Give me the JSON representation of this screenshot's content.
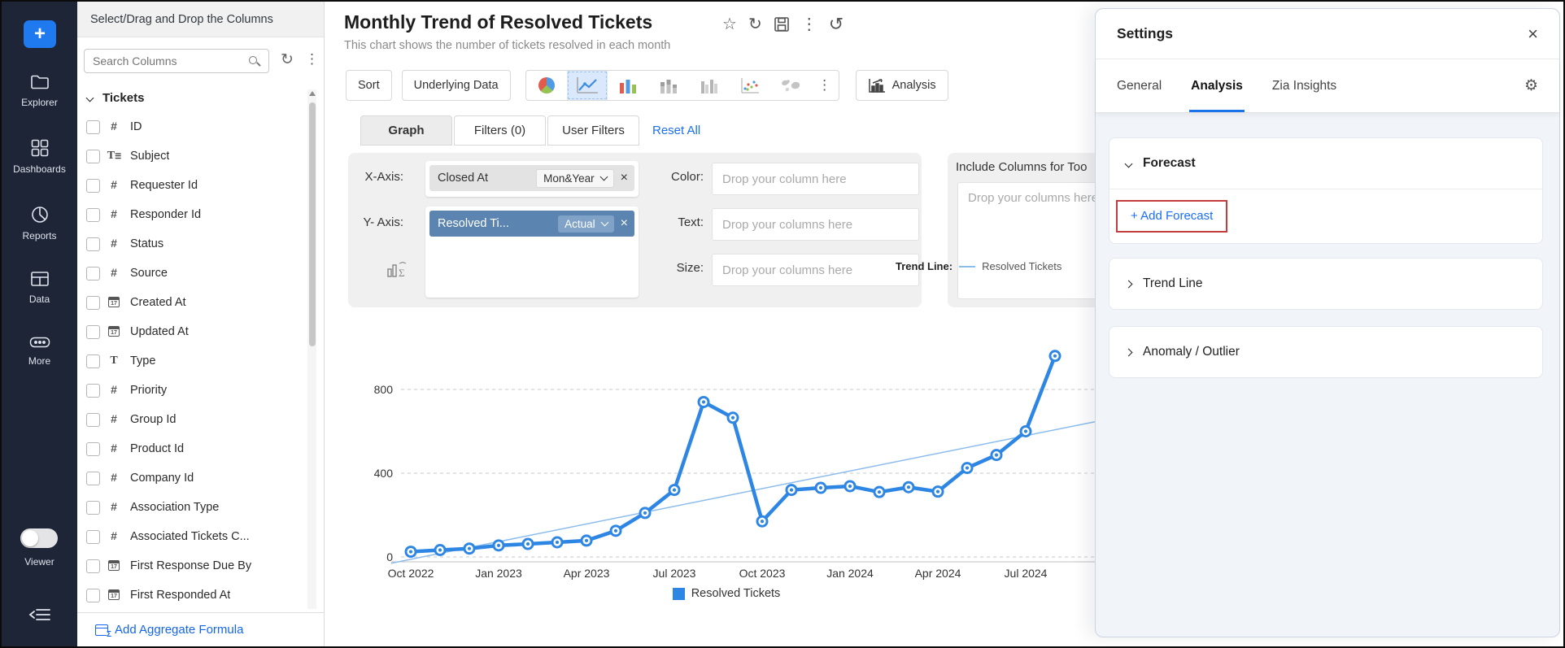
{
  "sidebar": {
    "plus_label": "+",
    "items": [
      {
        "label": "Explorer",
        "icon": "folder-icon"
      },
      {
        "label": "Dashboards",
        "icon": "grid-icon"
      },
      {
        "label": "Reports",
        "icon": "pie-outline-icon"
      },
      {
        "label": "Data",
        "icon": "table-icon"
      },
      {
        "label": "More",
        "icon": "ellipsis-pill-icon"
      }
    ],
    "viewer_label": "Viewer"
  },
  "columns_panel": {
    "header": "Select/Drag and Drop the Columns",
    "search_placeholder": "Search Columns",
    "group_label": "Tickets",
    "items": [
      {
        "label": "ID",
        "type": "number"
      },
      {
        "label": "Subject",
        "type": "multitext"
      },
      {
        "label": "Requester Id",
        "type": "number"
      },
      {
        "label": "Responder Id",
        "type": "number"
      },
      {
        "label": "Status",
        "type": "number"
      },
      {
        "label": "Source",
        "type": "number"
      },
      {
        "label": "Created At",
        "type": "date"
      },
      {
        "label": "Updated At",
        "type": "date"
      },
      {
        "label": "Type",
        "type": "text"
      },
      {
        "label": "Priority",
        "type": "number"
      },
      {
        "label": "Group Id",
        "type": "number"
      },
      {
        "label": "Product Id",
        "type": "number"
      },
      {
        "label": "Company Id",
        "type": "number"
      },
      {
        "label": "Association Type",
        "type": "number"
      },
      {
        "label": "Associated Tickets C...",
        "type": "number"
      },
      {
        "label": "First Response Due By",
        "type": "date"
      },
      {
        "label": "First Responded At",
        "type": "date"
      }
    ],
    "add_formula_label": "Add Aggregate Formula"
  },
  "report": {
    "title": "Monthly Trend of Resolved Tickets",
    "subtitle": "This chart shows the number of tickets resolved in each month",
    "toolbar": {
      "sort_label": "Sort",
      "underlying_label": "Underlying Data",
      "analysis_label": "Analysis",
      "chart_types": [
        {
          "name": "pie-chart-icon",
          "selected": false
        },
        {
          "name": "line-chart-icon",
          "selected": true
        },
        {
          "name": "bar-chart-icon",
          "selected": false
        },
        {
          "name": "stacked-bar-icon",
          "selected": false
        },
        {
          "name": "grouped-bar-icon",
          "selected": false
        },
        {
          "name": "scatter-chart-icon",
          "selected": false
        },
        {
          "name": "map-chart-icon",
          "selected": false
        }
      ]
    },
    "tabs": {
      "graph": "Graph",
      "filters": "Filters  (0)",
      "user_filters": "User Filters",
      "reset_all": "Reset All"
    }
  },
  "shelves": {
    "x_axis_label": "X-Axis:",
    "x_chip": "Closed At",
    "x_chip_fn": "Mon&Year",
    "y_axis_label": "Y- Axis:",
    "y_chip": "Resolved Ti...",
    "y_chip_fn": "Actual",
    "color_label": "Color:",
    "color_placeholder": "Drop your column here",
    "text_label": "Text:",
    "text_placeholder": "Drop your columns here",
    "size_label": "Size:",
    "size_placeholder": "Drop your columns here",
    "tooltip_label": "Include Columns for Too",
    "tooltip_placeholder": "Drop your columns here"
  },
  "settings": {
    "title": "Settings",
    "tabs": [
      "General",
      "Analysis",
      "Zia Insights"
    ],
    "active_tab": "Analysis",
    "sections": [
      {
        "label": "Forecast",
        "expanded": true,
        "action": "+ Add Forecast",
        "action_highlighted": true
      },
      {
        "label": "Trend Line",
        "expanded": false
      },
      {
        "label": "Anomaly / Outlier",
        "expanded": false
      }
    ]
  },
  "chart_data": {
    "type": "line",
    "x": [
      "Oct 2022",
      "Nov 2022",
      "Dec 2022",
      "Jan 2023",
      "Feb 2023",
      "Mar 2023",
      "Apr 2023",
      "May 2023",
      "Jun 2023",
      "Jul 2023",
      "Aug 2023",
      "Sep 2023",
      "Oct 2023",
      "Nov 2023",
      "Dec 2023",
      "Jan 2024",
      "Feb 2024",
      "Mar 2024",
      "Apr 2024",
      "May 2024",
      "Jun 2024",
      "Jul 2024",
      "Aug 2024"
    ],
    "series": [
      {
        "name": "Resolved Tickets",
        "values": [
          25,
          33,
          40,
          55,
          62,
          70,
          78,
          125,
          210,
          320,
          740,
          665,
          170,
          320,
          330,
          338,
          310,
          333,
          312,
          425,
          487,
          600,
          960
        ]
      }
    ],
    "trend_line": {
      "name": "Resolved Tickets",
      "start_value": -30,
      "end_value": 655
    },
    "x_tick_labels": [
      "Oct 2022",
      "Jan 2023",
      "Apr 2023",
      "Jul 2023",
      "Oct 2023",
      "Jan 2024",
      "Apr 2024",
      "Jul 2024"
    ],
    "y_ticks": [
      0,
      400,
      800
    ],
    "ylim": [
      0,
      1000
    ],
    "grid": "dashed-horizontal",
    "legend_top_key": "Trend Line:",
    "legend_top_value": "Resolved Tickets",
    "legend_bottom": "Resolved Tickets",
    "colors": {
      "line": "#2e86e4",
      "trend": "#8cbcec",
      "grid": "#c9c9c9"
    }
  }
}
